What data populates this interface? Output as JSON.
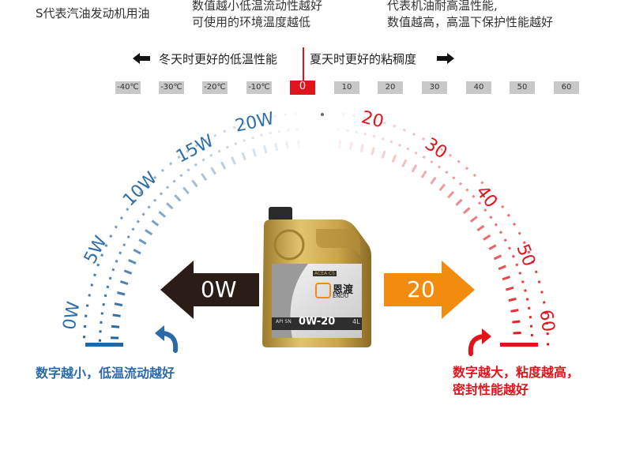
{
  "header": {
    "left_line": "S代表汽油发动机用油",
    "middle_line1": "数值越小低温流动性越好",
    "middle_line2": "可使用的环境温度越低",
    "right_line1": "代表机油耐高温性能,",
    "right_line2": "数值越高，高温下保护性能越好"
  },
  "scale": {
    "left_caption": "冬天时更好的低温性能",
    "right_caption": "夏天时更好的粘稠度",
    "ticks": [
      "-40℃",
      "-30℃",
      "-20℃",
      "-10℃",
      "0",
      "10",
      "20",
      "30",
      "40",
      "50",
      "60"
    ]
  },
  "gauge": {
    "winter_labels": [
      "0W",
      "5W",
      "10W",
      "15W",
      "20W"
    ],
    "heat_labels": [
      "20",
      "30",
      "40",
      "50",
      "60"
    ]
  },
  "arrows": {
    "left_label": "0W",
    "right_label": "20"
  },
  "product": {
    "brand_cn": "恩渡",
    "brand_en": "ENDU",
    "grade": "0W-20",
    "api": "API SN",
    "volume": "4L",
    "acea": "ACEA C5"
  },
  "footer": {
    "left_text": "数字越小，低温流动越好",
    "right_line1": "数字越大，粘度越高，",
    "right_line2": "密封性能越好"
  },
  "colors": {
    "blue": "#2f6fa8",
    "red": "#e0141b",
    "orange": "#f28c0f",
    "dark_arrow": "#2a1d18",
    "gold": "#c9a34a"
  }
}
